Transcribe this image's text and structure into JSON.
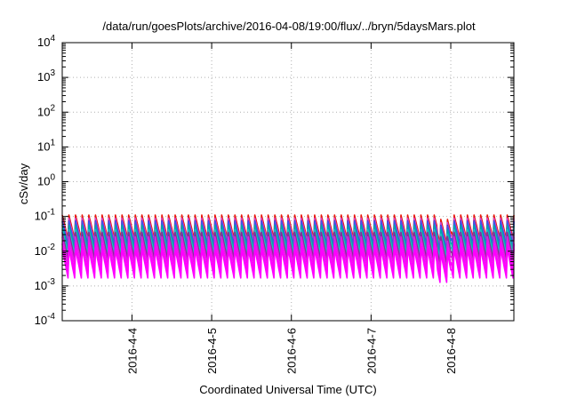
{
  "chart_data": {
    "type": "line",
    "title": "/data/run/goesPlots/archive/2016-04-08/19:00/flux/../bryn/5daysMars.plot",
    "xlabel": "Coordinated Universal Time (UTC)",
    "ylabel": "cSv/day",
    "y_scale": "log",
    "ylim": [
      0.0001,
      10000
    ],
    "y_ticks": [
      {
        "base": "10",
        "exp": "-4"
      },
      {
        "base": "10",
        "exp": "-3"
      },
      {
        "base": "10",
        "exp": "-2"
      },
      {
        "base": "10",
        "exp": "-1"
      },
      {
        "base": "10",
        "exp": "0"
      },
      {
        "base": "10",
        "exp": "1"
      },
      {
        "base": "10",
        "exp": "2"
      },
      {
        "base": "10",
        "exp": "3"
      },
      {
        "base": "10",
        "exp": "4"
      }
    ],
    "xlim": [
      "2016-04-03T03:00",
      "2016-04-08T19:00"
    ],
    "x_ticks": [
      "2016-4-4",
      "2016-4-5",
      "2016-4-6",
      "2016-4-7",
      "2016-4-8"
    ],
    "grid": true,
    "legend": "none",
    "pattern": {
      "description": "Many series with a periodic sawtooth dose rate",
      "period_hours": 2,
      "step_hours": 0.25,
      "anomaly": {
        "start": "2016-04-07T20:00",
        "end": "2016-04-08T00:00",
        "factor": 0.75
      }
    },
    "series": [
      {
        "color": "#e8170a",
        "high": 0.11,
        "low": 0.018
      },
      {
        "color": "#cc44cc",
        "high": 0.095,
        "low": 0.016
      },
      {
        "color": "#2a2ad8",
        "high": 0.085,
        "low": 0.013
      },
      {
        "color": "#3a5ae8",
        "high": 0.07,
        "low": 0.011
      },
      {
        "color": "#00a8a8",
        "high": 0.06,
        "low": 0.009
      },
      {
        "color": "#20c0c0",
        "high": 0.048,
        "low": 0.0075
      },
      {
        "color": "#8a2a9a",
        "high": 0.035,
        "low": 0.0045
      },
      {
        "color": "#e020e0",
        "high": 0.028,
        "low": 0.0035
      },
      {
        "color": "#ff00ff",
        "high": 0.02,
        "low": 0.0025
      },
      {
        "color": "#ff00ff",
        "high": 0.016,
        "low": 0.0018
      },
      {
        "color": "#ff00ff",
        "high": 0.013,
        "low": 0.0014
      }
    ]
  }
}
